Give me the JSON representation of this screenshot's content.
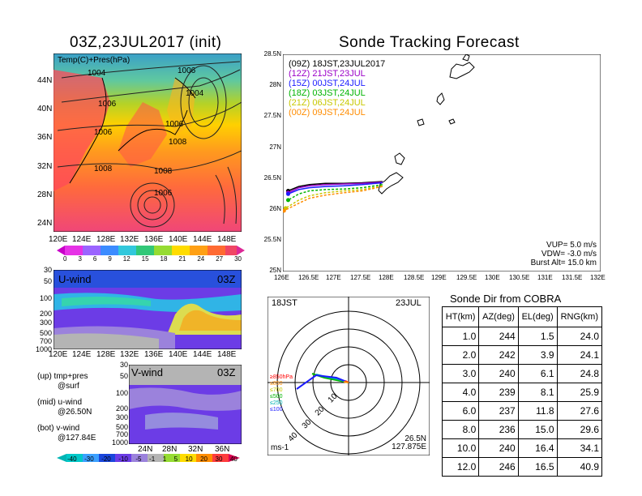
{
  "main_title": "Sonde Tracking Forecast",
  "map": {
    "title": "03Z,23JUL2017  (init)",
    "legend_label": "Temp(C)+Pres(hPa)",
    "isobar_labels": [
      "1004",
      "1006",
      "1006",
      "1004",
      "1006",
      "1006",
      "1008",
      "1008",
      "1008",
      "1006"
    ],
    "lat_labels": [
      "44N",
      "40N",
      "36N",
      "32N",
      "28N",
      "24N"
    ],
    "lon_labels": [
      "120E",
      "124E",
      "128E",
      "132E",
      "136E",
      "140E",
      "144E",
      "148E"
    ],
    "colorbar_ticks": [
      "0",
      "3",
      "6",
      "9",
      "12",
      "15",
      "18",
      "21",
      "24",
      "27",
      "30"
    ]
  },
  "uwind": {
    "label": "U-wind",
    "time": "03Z",
    "p_labels": [
      "30",
      "50",
      "100",
      "200",
      "300",
      "500",
      "700",
      "1000"
    ],
    "lon_labels": [
      "120E",
      "124E",
      "128E",
      "132E",
      "136E",
      "140E",
      "144E",
      "148E"
    ]
  },
  "vwind": {
    "label": "V-wind",
    "time": "03Z",
    "p_labels": [
      "30",
      "50",
      "100",
      "200",
      "300",
      "500",
      "700",
      "1000"
    ],
    "lat_labels": [
      "24N",
      "28N",
      "32N",
      "36N"
    ]
  },
  "notes": {
    "up_line1": "(up)  tmp+pres",
    "up_line2": "@surf",
    "mid_line1": "(mid)  u-wind",
    "mid_line2": "@26.50N",
    "bot_line1": "(bot)  v-wind",
    "bot_line2": "@127.84E"
  },
  "wind_colorbar_ticks": [
    "-40",
    "-30",
    "-20",
    "-10",
    "-5",
    "-1",
    "1",
    "5",
    "10",
    "20",
    "30",
    "40"
  ],
  "track": {
    "legend": [
      {
        "text": "(09Z)  18JST,23JUL2017",
        "color": "#000000"
      },
      {
        "text": "(12Z)  21JST,23JUL",
        "color": "#9b00c8"
      },
      {
        "text": "(15Z)  00JST,24JUL",
        "color": "#1a1aff"
      },
      {
        "text": "(18Z)  03JST,24JUL",
        "color": "#00b400"
      },
      {
        "text": "(21Z)  06JST,24JUL",
        "color": "#c8c800"
      },
      {
        "text": "(00Z)  09JST,24JUL",
        "color": "#ff8c00"
      }
    ],
    "lat_labels": [
      "28.5N",
      "28N",
      "27.5N",
      "27N",
      "26.5N",
      "26N",
      "25.5N",
      "25N"
    ],
    "lon_labels": [
      "126E",
      "126.5E",
      "127E",
      "127.5E",
      "128E",
      "128.5E",
      "129E",
      "129.5E",
      "130E",
      "130.5E",
      "131E",
      "131.5E",
      "132E"
    ],
    "params": [
      "VUP=   5.0  m/s",
      "VDW=  -3.0  m/s",
      "Burst Alt=  15.0  km"
    ]
  },
  "hodograph": {
    "time_label": "18JST",
    "date_label": "23JUL",
    "unit": "ms-1",
    "location_line1": "26.5N",
    "location_line2": "127.875E",
    "ring_labels": [
      "10",
      "20",
      "30",
      "40"
    ],
    "pressure_legend": [
      {
        "text": "≥850hPa",
        "color": "#ff0000"
      },
      {
        "text": "≤850",
        "color": "#ff8c00"
      },
      {
        "text": "≤700",
        "color": "#c8c800"
      },
      {
        "text": "≤500",
        "color": "#00b400"
      },
      {
        "text": "≤250",
        "color": "#00b4b4"
      },
      {
        "text": "≤100",
        "color": "#1a1aff"
      }
    ]
  },
  "sonde_dir": {
    "title": "Sonde Dir from COBRA",
    "headers": [
      "HT(km)",
      "AZ(deg)",
      "EL(deg)",
      "RNG(km)"
    ],
    "rows": [
      [
        "1.0",
        "244",
        "1.5",
        "24.0"
      ],
      [
        "2.0",
        "242",
        "3.9",
        "24.1"
      ],
      [
        "3.0",
        "240",
        "6.1",
        "24.8"
      ],
      [
        "4.0",
        "239",
        "8.1",
        "25.9"
      ],
      [
        "6.0",
        "237",
        "11.8",
        "27.6"
      ],
      [
        "8.0",
        "236",
        "15.0",
        "29.6"
      ],
      [
        "10.0",
        "240",
        "16.4",
        "34.1"
      ],
      [
        "12.0",
        "246",
        "16.5",
        "40.9"
      ]
    ]
  },
  "chart_data": {
    "type": "line",
    "title": "Sonde Tracking Forecast",
    "xlim": [
      126,
      132
    ],
    "ylim": [
      25,
      28.5
    ],
    "series": [
      {
        "name": "(09Z)  18JST,23JUL2017",
        "color": "#000000",
        "x": [
          127.88,
          127.5,
          127.15,
          126.8,
          126.5,
          126.3,
          126.1
        ],
        "y": [
          26.45,
          26.43,
          26.42,
          26.42,
          26.4,
          26.37,
          26.3
        ]
      },
      {
        "name": "(12Z)  21JST,23JUL",
        "color": "#9b00c8",
        "x": [
          127.88,
          127.5,
          127.15,
          126.8,
          126.5,
          126.3,
          126.1
        ],
        "y": [
          26.44,
          26.42,
          26.41,
          26.4,
          26.38,
          26.35,
          26.27
        ]
      },
      {
        "name": "(15Z)  00JST,24JUL",
        "color": "#1a1aff",
        "x": [
          127.88,
          127.5,
          127.15,
          126.8,
          126.5,
          126.3,
          126.1
        ],
        "y": [
          26.43,
          26.4,
          26.38,
          26.37,
          26.35,
          26.32,
          26.25
        ]
      },
      {
        "name": "(18Z)  03JST,24JUL",
        "color": "#00b400",
        "x": [
          127.88,
          127.5,
          127.15,
          126.8,
          126.5,
          126.3,
          126.1
        ],
        "y": [
          26.4,
          26.35,
          26.33,
          26.32,
          26.3,
          26.25,
          26.15
        ]
      },
      {
        "name": "(21Z)  06JST,24JUL",
        "color": "#c8c800",
        "x": [
          127.88,
          127.5,
          127.15,
          126.8,
          126.5,
          126.3,
          126.05
        ],
        "y": [
          26.38,
          26.32,
          26.3,
          26.27,
          26.22,
          26.15,
          26.02
        ]
      },
      {
        "name": "(00Z)  09JST,24JUL",
        "color": "#ff8c00",
        "x": [
          127.88,
          127.5,
          127.15,
          126.8,
          126.5,
          126.3,
          126.02
        ],
        "y": [
          26.37,
          26.3,
          26.27,
          26.23,
          26.18,
          26.1,
          25.98
        ]
      }
    ]
  }
}
